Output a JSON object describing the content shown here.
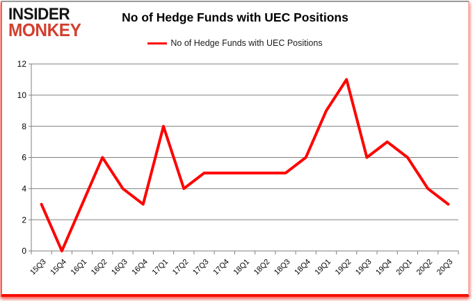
{
  "logo": {
    "line1": "INSIDER",
    "line2": "MONKEY"
  },
  "header": {
    "title": "No of Hedge Funds with UEC Positions"
  },
  "legend": {
    "label": "No of Hedge Funds with UEC Positions"
  },
  "colors": {
    "line": "#ff0000",
    "logo_red": "#d23f2e",
    "grid": "#7f7f7f",
    "axis_text": "#000000",
    "border_bottom": "#f70d02"
  },
  "chart_data": {
    "type": "line",
    "title": "No of Hedge Funds with UEC Positions",
    "categories": [
      "15Q3",
      "15Q4",
      "16Q1",
      "16Q2",
      "16Q3",
      "16Q4",
      "17Q1",
      "17Q2",
      "17Q3",
      "17Q4",
      "18Q1",
      "18Q2",
      "18Q3",
      "18Q4",
      "19Q1",
      "19Q2",
      "19Q3",
      "19Q4",
      "20Q1",
      "20Q2",
      "20Q3"
    ],
    "series": [
      {
        "name": "No of Hedge Funds with UEC Positions",
        "values": [
          3,
          0,
          3,
          6,
          4,
          3,
          8,
          4,
          5,
          5,
          5,
          5,
          5,
          6,
          9,
          11,
          6,
          7,
          6,
          4,
          3
        ],
        "color": "#ff0000"
      }
    ],
    "xlabel": "",
    "ylabel": "",
    "ylim": [
      0,
      12
    ],
    "ytick_step": 2,
    "grid": true,
    "legend_position": "top-center",
    "x_label_rotation": -45
  }
}
